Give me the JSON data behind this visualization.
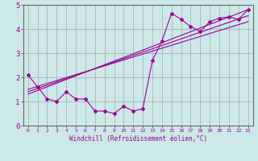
{
  "xlabel": "Windchill (Refroidissement éolien,°C)",
  "background_color": "#cce8e8",
  "grid_color": "#aaaaaa",
  "line_color": "#990099",
  "spine_color": "#666666",
  "xlim": [
    -0.5,
    23.5
  ],
  "ylim": [
    0,
    5
  ],
  "xticks": [
    0,
    1,
    2,
    3,
    4,
    5,
    6,
    7,
    8,
    9,
    10,
    11,
    12,
    13,
    14,
    15,
    16,
    17,
    18,
    19,
    20,
    21,
    22,
    23
  ],
  "yticks": [
    0,
    1,
    2,
    3,
    4,
    5
  ],
  "series1": {
    "x": [
      0,
      1,
      2,
      3,
      4,
      5,
      6,
      7,
      8,
      9,
      10,
      11,
      12,
      13,
      14,
      15,
      16,
      17,
      18,
      19,
      20,
      21,
      22,
      23
    ],
    "y": [
      2.1,
      1.6,
      1.1,
      1.0,
      1.4,
      1.1,
      1.1,
      0.6,
      0.6,
      0.5,
      0.8,
      0.6,
      0.7,
      2.7,
      3.5,
      4.65,
      4.4,
      4.1,
      3.9,
      4.3,
      4.45,
      4.5,
      4.4,
      4.8
    ]
  },
  "series2": {
    "x": [
      0,
      23
    ],
    "y": [
      1.5,
      4.3
    ]
  },
  "series3": {
    "x": [
      0,
      23
    ],
    "y": [
      1.4,
      4.55
    ]
  },
  "series4": {
    "x": [
      0,
      23
    ],
    "y": [
      1.3,
      4.8
    ]
  }
}
